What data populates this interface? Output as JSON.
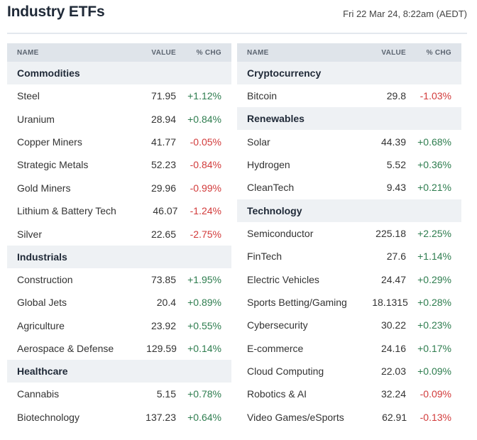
{
  "header": {
    "title": "Industry ETFs",
    "timestamp": "Fri 22 Mar 24, 8:22am (AEDT)"
  },
  "columns": {
    "name": "NAME",
    "value": "VALUE",
    "chg": "% CHG"
  },
  "colors": {
    "positive": "#2e7d4f",
    "negative": "#d23b3b",
    "section_bg": "#eef1f4",
    "header_bg": "#dfe4ea"
  },
  "left_panel": [
    {
      "section": "Commodities",
      "rows": [
        {
          "name": "Steel",
          "value": "71.95",
          "chg": "+1.12%"
        },
        {
          "name": "Uranium",
          "value": "28.94",
          "chg": "+0.84%"
        },
        {
          "name": "Copper Miners",
          "value": "41.77",
          "chg": "-0.05%"
        },
        {
          "name": "Strategic Metals",
          "value": "52.23",
          "chg": "-0.84%"
        },
        {
          "name": "Gold Miners",
          "value": "29.96",
          "chg": "-0.99%"
        },
        {
          "name": "Lithium & Battery Tech",
          "value": "46.07",
          "chg": "-1.24%"
        },
        {
          "name": "Silver",
          "value": "22.65",
          "chg": "-2.75%"
        }
      ]
    },
    {
      "section": "Industrials",
      "rows": [
        {
          "name": "Construction",
          "value": "73.85",
          "chg": "+1.95%"
        },
        {
          "name": "Global Jets",
          "value": "20.4",
          "chg": "+0.89%"
        },
        {
          "name": "Agriculture",
          "value": "23.92",
          "chg": "+0.55%"
        },
        {
          "name": "Aerospace & Defense",
          "value": "129.59",
          "chg": "+0.14%"
        }
      ]
    },
    {
      "section": "Healthcare",
      "rows": [
        {
          "name": "Cannabis",
          "value": "5.15",
          "chg": "+0.78%"
        },
        {
          "name": "Biotechnology",
          "value": "137.23",
          "chg": "+0.64%"
        }
      ]
    }
  ],
  "right_panel": [
    {
      "section": "Cryptocurrency",
      "rows": [
        {
          "name": "Bitcoin",
          "value": "29.8",
          "chg": "-1.03%"
        }
      ]
    },
    {
      "section": "Renewables",
      "rows": [
        {
          "name": "Solar",
          "value": "44.39",
          "chg": "+0.68%"
        },
        {
          "name": "Hydrogen",
          "value": "5.52",
          "chg": "+0.36%"
        },
        {
          "name": "CleanTech",
          "value": "9.43",
          "chg": "+0.21%"
        }
      ]
    },
    {
      "section": "Technology",
      "rows": [
        {
          "name": "Semiconductor",
          "value": "225.18",
          "chg": "+2.25%"
        },
        {
          "name": "FinTech",
          "value": "27.6",
          "chg": "+1.14%"
        },
        {
          "name": "Electric Vehicles",
          "value": "24.47",
          "chg": "+0.29%"
        },
        {
          "name": "Sports Betting/Gaming",
          "value": "18.1315",
          "chg": "+0.28%"
        },
        {
          "name": "Cybersecurity",
          "value": "30.22",
          "chg": "+0.23%"
        },
        {
          "name": "E-commerce",
          "value": "24.16",
          "chg": "+0.17%"
        },
        {
          "name": "Cloud Computing",
          "value": "22.03",
          "chg": "+0.09%"
        },
        {
          "name": "Robotics & AI",
          "value": "32.24",
          "chg": "-0.09%"
        },
        {
          "name": "Video Games/eSports",
          "value": "62.91",
          "chg": "-0.13%"
        }
      ]
    }
  ]
}
